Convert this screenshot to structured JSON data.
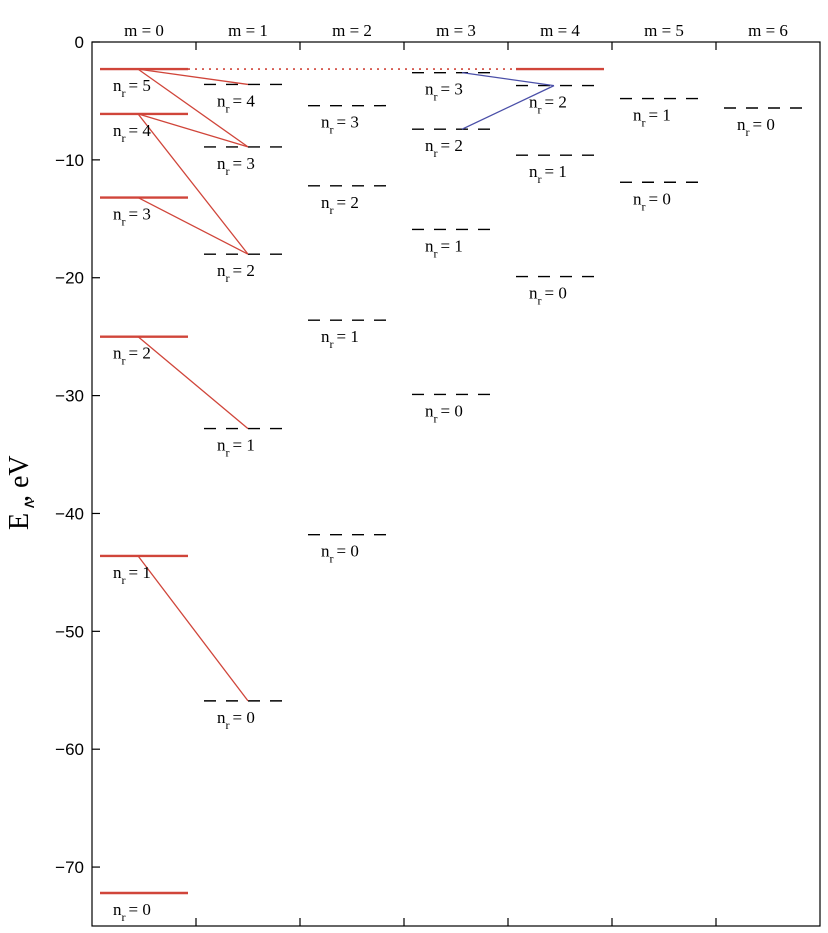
{
  "ylabel": {
    "main": "E",
    "sub": "∧",
    "rest": ", eV"
  },
  "yaxis": {
    "min": -75,
    "max": 0,
    "ticks": [
      0,
      -10,
      -20,
      -30,
      -40,
      -50,
      -60,
      -70
    ]
  },
  "columns": [
    "m = 0",
    "m = 1",
    "m = 2",
    "m = 3",
    "m = 4",
    "m = 5",
    "m = 6"
  ],
  "level_prefix": "n",
  "level_sub": "r",
  "levels": [
    {
      "m": 0,
      "nr": 0,
      "E": -72.2,
      "label": "= 0"
    },
    {
      "m": 0,
      "nr": 1,
      "E": -43.6,
      "label": "= 1"
    },
    {
      "m": 0,
      "nr": 2,
      "E": -25.0,
      "label": "= 2"
    },
    {
      "m": 0,
      "nr": 3,
      "E": -13.2,
      "label": "= 3"
    },
    {
      "m": 0,
      "nr": 4,
      "E": -6.1,
      "label": "= 4"
    },
    {
      "m": 0,
      "nr": 5,
      "E": -2.3,
      "label": "= 5"
    },
    {
      "m": 1,
      "nr": 0,
      "E": -55.9,
      "label": "= 0"
    },
    {
      "m": 1,
      "nr": 1,
      "E": -32.8,
      "label": "= 1"
    },
    {
      "m": 1,
      "nr": 2,
      "E": -18.0,
      "label": "= 2"
    },
    {
      "m": 1,
      "nr": 3,
      "E": -8.9,
      "label": "= 3"
    },
    {
      "m": 1,
      "nr": 4,
      "E": -3.6,
      "label": "= 4"
    },
    {
      "m": 2,
      "nr": 0,
      "E": -41.8,
      "label": "= 0"
    },
    {
      "m": 2,
      "nr": 1,
      "E": -23.6,
      "label": "= 1"
    },
    {
      "m": 2,
      "nr": 2,
      "E": -12.2,
      "label": "= 2"
    },
    {
      "m": 2,
      "nr": 3,
      "E": -5.4,
      "label": "= 3"
    },
    {
      "m": 3,
      "nr": 0,
      "E": -29.9,
      "label": "= 0"
    },
    {
      "m": 3,
      "nr": 1,
      "E": -15.9,
      "label": "= 1"
    },
    {
      "m": 3,
      "nr": 2,
      "E": -7.4,
      "label": "= 2"
    },
    {
      "m": 3,
      "nr": 3,
      "E": -2.6,
      "label": "= 3"
    },
    {
      "m": 4,
      "nr": 0,
      "E": -19.9,
      "label": "= 0"
    },
    {
      "m": 4,
      "nr": 1,
      "E": -9.6,
      "label": "= 1"
    },
    {
      "m": 4,
      "nr": 2,
      "E": -3.7,
      "label": "= 2"
    },
    {
      "m": 5,
      "nr": 0,
      "E": -11.9,
      "label": "= 0"
    },
    {
      "m": 5,
      "nr": 1,
      "E": -4.8,
      "label": "= 1"
    },
    {
      "m": 6,
      "nr": 0,
      "E": -5.6,
      "label": "= 0"
    }
  ],
  "solid_columns": [
    0
  ],
  "dotted_level": {
    "from_m": 0,
    "to_m": 4,
    "E": -2.3
  },
  "transitions": [
    {
      "from": [
        0,
        1
      ],
      "to": [
        1,
        0
      ],
      "color": "#d0453a"
    },
    {
      "from": [
        0,
        2
      ],
      "to": [
        1,
        1
      ],
      "color": "#d0453a"
    },
    {
      "from": [
        0,
        3
      ],
      "to": [
        1,
        2
      ],
      "color": "#d0453a"
    },
    {
      "from": [
        0,
        4
      ],
      "to": [
        1,
        2
      ],
      "color": "#d0453a"
    },
    {
      "from": [
        0,
        4
      ],
      "to": [
        1,
        3
      ],
      "color": "#d0453a"
    },
    {
      "from": [
        0,
        5
      ],
      "to": [
        1,
        3
      ],
      "color": "#d0453a"
    },
    {
      "from": [
        0,
        5
      ],
      "to": [
        1,
        4
      ],
      "color": "#d0453a"
    },
    {
      "from": [
        4,
        2
      ],
      "to": [
        3,
        2
      ],
      "color": "#4a4fa8"
    },
    {
      "from": [
        4,
        2
      ],
      "to": [
        3,
        3
      ],
      "color": "#4a4fa8"
    }
  ],
  "colors": {
    "solid_level": "#d0453a",
    "dashed_level": "#000000",
    "dotted": "#d0453a",
    "axis": "#000000"
  }
}
